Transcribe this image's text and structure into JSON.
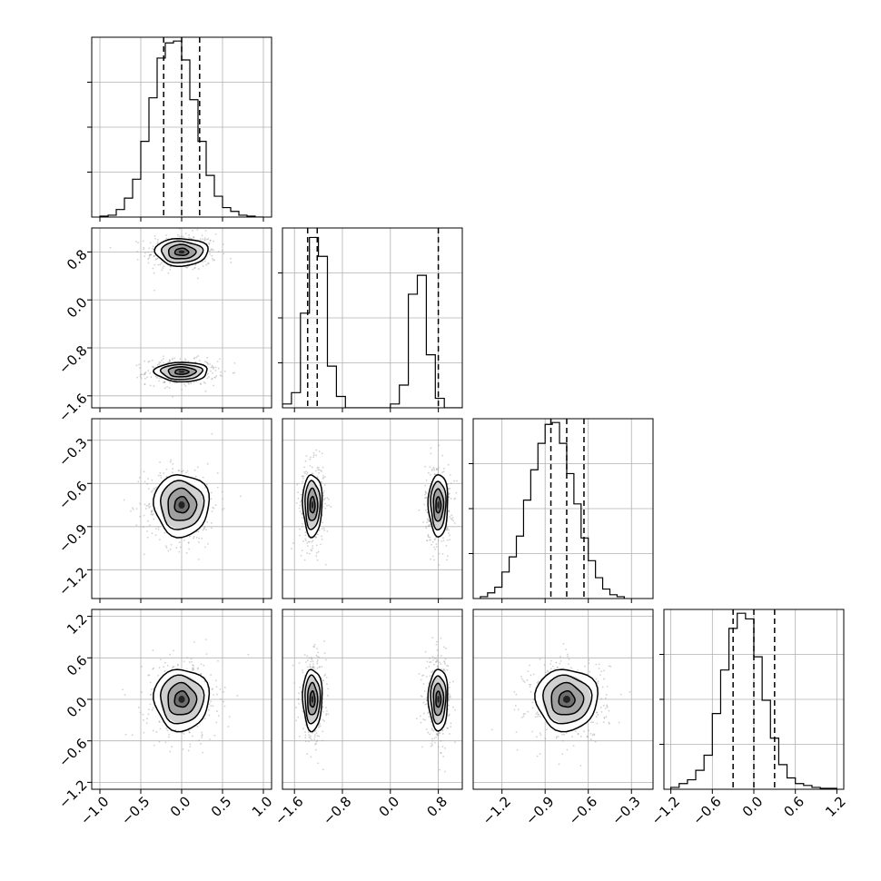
{
  "chart_data": {
    "type": "corner",
    "title": "",
    "n_params": 4,
    "parameter_labels": [
      "",
      "",
      "",
      ""
    ],
    "axis_ranges": [
      [
        -1.1,
        1.1
      ],
      [
        -1.8,
        1.2
      ],
      [
        -1.4,
        -0.15
      ],
      [
        -1.3,
        1.3
      ]
    ],
    "x_ticks": [
      [
        "−1.0",
        "−0.5",
        "0.0",
        "0.5",
        "1.0"
      ],
      [
        "−1.6",
        "−0.8",
        "0.0",
        "0.8"
      ],
      [
        "−1.2",
        "−0.9",
        "−0.6",
        "−0.3"
      ],
      [
        "−1.2",
        "−0.6",
        "0.0",
        "0.6",
        "1.2"
      ]
    ],
    "y_ticks": [
      [],
      [
        "0.8",
        "0.0",
        "−0.8",
        "−1.6"
      ],
      [
        "−0.3",
        "−0.6",
        "−0.9",
        "−1.2"
      ],
      [
        "1.2",
        "0.6",
        "0.0",
        "−0.6",
        "−1.2"
      ]
    ],
    "x_tick_values": [
      [
        -1.0,
        -0.5,
        0.0,
        0.5,
        1.0
      ],
      [
        -1.6,
        -0.8,
        0.0,
        0.8
      ],
      [
        -1.2,
        -0.9,
        -0.6,
        -0.3
      ],
      [
        -1.2,
        -0.6,
        0.0,
        0.6,
        1.2
      ]
    ],
    "y_tick_values": [
      [],
      [
        0.8,
        0.0,
        -0.8,
        -1.6
      ],
      [
        -0.3,
        -0.6,
        -0.9,
        -1.2
      ],
      [
        1.2,
        0.6,
        0.0,
        -0.6,
        -1.2
      ]
    ],
    "histograms": [
      {
        "param": 0,
        "bin_start": -1.0,
        "bin_width": 0.1,
        "counts": [
          0.005,
          0.01,
          0.04,
          0.1,
          0.2,
          0.4,
          0.63,
          0.84,
          0.92,
          0.93,
          0.83,
          0.62,
          0.4,
          0.22,
          0.11,
          0.05,
          0.03,
          0.01,
          0.005,
          0.0
        ],
        "quantiles": [
          -0.22,
          0.0,
          0.22
        ]
      },
      {
        "param": 1,
        "bin_start": -1.8,
        "bin_width": 0.15,
        "counts": [
          0.02,
          0.08,
          0.5,
          0.9,
          0.8,
          0.22,
          0.06,
          0.0,
          0.0,
          0.0,
          0.0,
          0.0,
          0.02,
          0.12,
          0.6,
          0.7,
          0.28,
          0.05,
          0.0,
          0.0
        ],
        "quantiles": [
          -1.38,
          -1.22,
          0.8
        ]
      },
      {
        "param": 2,
        "bin_start": -1.35,
        "bin_width": 0.05,
        "counts": [
          0.01,
          0.03,
          0.06,
          0.14,
          0.22,
          0.33,
          0.52,
          0.68,
          0.82,
          0.92,
          0.93,
          0.82,
          0.66,
          0.5,
          0.32,
          0.2,
          0.11,
          0.05,
          0.02,
          0.01
        ],
        "quantiles": [
          -0.86,
          -0.75,
          -0.63
        ]
      },
      {
        "param": 3,
        "bin_start": -1.2,
        "bin_width": 0.12,
        "counts": [
          0.01,
          0.03,
          0.05,
          0.1,
          0.18,
          0.4,
          0.63,
          0.85,
          0.93,
          0.9,
          0.7,
          0.47,
          0.27,
          0.13,
          0.06,
          0.03,
          0.02,
          0.01,
          0.005,
          0.005
        ],
        "quantiles": [
          -0.3,
          0.0,
          0.3
        ]
      }
    ],
    "density_panels": [
      {
        "row": 1,
        "col": 0,
        "blobs": [
          {
            "cx": 0.0,
            "cy": 0.8,
            "sx": 0.24,
            "sy": 0.17,
            "levels": [
              0.35,
              0.7,
              1.05,
              1.35
            ]
          },
          {
            "cx": 0.0,
            "cy": -1.2,
            "sx": 0.24,
            "sy": 0.12,
            "levels": [
              0.35,
              0.7,
              1.05,
              1.35
            ]
          }
        ]
      },
      {
        "row": 2,
        "col": 0,
        "blobs": [
          {
            "cx": 0.0,
            "cy": -0.75,
            "sx": 0.25,
            "sy": 0.16,
            "levels": [
              0.35,
              0.7,
              1.05,
              1.35
            ]
          }
        ]
      },
      {
        "row": 2,
        "col": 1,
        "blobs": [
          {
            "cx": -1.3,
            "cy": -0.75,
            "sx": 0.12,
            "sy": 0.16,
            "levels": [
              0.35,
              0.7,
              1.05,
              1.35
            ]
          },
          {
            "cx": 0.8,
            "cy": -0.75,
            "sx": 0.12,
            "sy": 0.16,
            "levels": [
              0.35,
              0.7,
              1.05,
              1.35
            ]
          }
        ]
      },
      {
        "row": 3,
        "col": 0,
        "blobs": [
          {
            "cx": 0.0,
            "cy": 0.0,
            "sx": 0.25,
            "sy": 0.33,
            "levels": [
              0.35,
              0.7,
              1.05,
              1.35
            ]
          }
        ]
      },
      {
        "row": 3,
        "col": 1,
        "blobs": [
          {
            "cx": -1.3,
            "cy": 0.0,
            "sx": 0.12,
            "sy": 0.33,
            "levels": [
              0.35,
              0.7,
              1.05,
              1.35
            ]
          },
          {
            "cx": 0.8,
            "cy": 0.0,
            "sx": 0.12,
            "sy": 0.33,
            "levels": [
              0.35,
              0.7,
              1.05,
              1.35
            ]
          }
        ]
      },
      {
        "row": 3,
        "col": 2,
        "blobs": [
          {
            "cx": -0.75,
            "cy": 0.0,
            "sx": 0.16,
            "sy": 0.33,
            "levels": [
              0.35,
              0.7,
              1.05,
              1.35
            ]
          }
        ]
      }
    ],
    "grid": true,
    "legend": "none",
    "colors": {
      "scatter": "#999999",
      "density": "#000000",
      "lines": "#000000"
    }
  }
}
